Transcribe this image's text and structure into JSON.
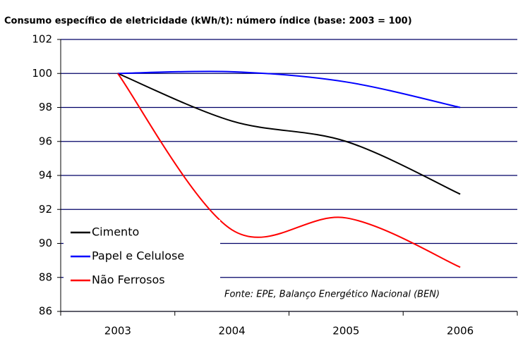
{
  "chart_data": {
    "type": "line",
    "title": "Consumo específico de eletricidade (kWh/t): número índice (base: 2003 = 100)",
    "categories": [
      "2003",
      "2004",
      "2005",
      "2006"
    ],
    "series": [
      {
        "name": "Cimento",
        "color": "#000000",
        "values": [
          100,
          97.2,
          96.0,
          92.9
        ]
      },
      {
        "name": "Papel e Celulose",
        "color": "#0000ff",
        "values": [
          100,
          100.1,
          99.5,
          98.0
        ]
      },
      {
        "name": "Não Ferrosos",
        "color": "#ff0000",
        "values": [
          100,
          90.8,
          91.5,
          88.6
        ]
      }
    ],
    "annotation": "Fonte: EPE, Balanço Energético Nacional (BEN)",
    "ylim": [
      86,
      102
    ],
    "yticks": [
      86,
      88,
      90,
      92,
      94,
      96,
      98,
      100,
      102
    ],
    "grid": true,
    "legend": "lower left",
    "smooth": true
  }
}
